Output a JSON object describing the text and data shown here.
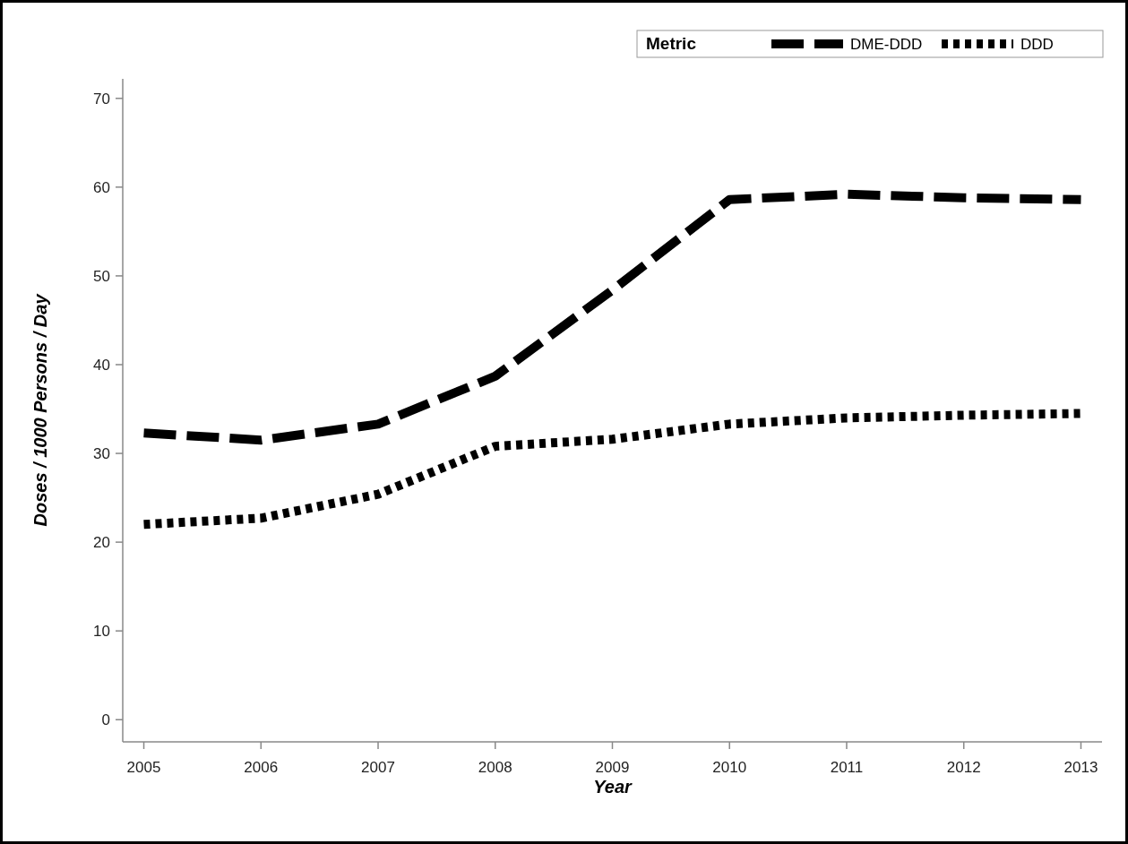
{
  "chart_data": {
    "type": "line",
    "xlabel": "Year",
    "ylabel": "Doses / 1000 Persons / Day",
    "legend_title": "Metric",
    "legend": "top right",
    "grid": false,
    "x": [
      2005,
      2006,
      2007,
      2008,
      2009,
      2010,
      2011,
      2012,
      2013
    ],
    "xlim": [
      2004.82,
      2013.18
    ],
    "xticks": [
      2005,
      2006,
      2007,
      2008,
      2009,
      2010,
      2011,
      2012,
      2013
    ],
    "ylim": [
      -2.5,
      72.2
    ],
    "yticks": [
      0,
      10,
      20,
      30,
      40,
      50,
      60,
      70
    ],
    "series": [
      {
        "name": "DME-DDD",
        "color": "#000000",
        "line_style": "dashed",
        "values": [
          32.3,
          31.5,
          33.3,
          38.7,
          48.4,
          58.6,
          59.2,
          58.8,
          58.6
        ]
      },
      {
        "name": "DDD",
        "color": "#000000",
        "line_style": "dotted",
        "values": [
          22.0,
          22.7,
          25.4,
          30.8,
          31.6,
          33.3,
          34.0,
          34.3,
          34.5
        ]
      }
    ]
  }
}
